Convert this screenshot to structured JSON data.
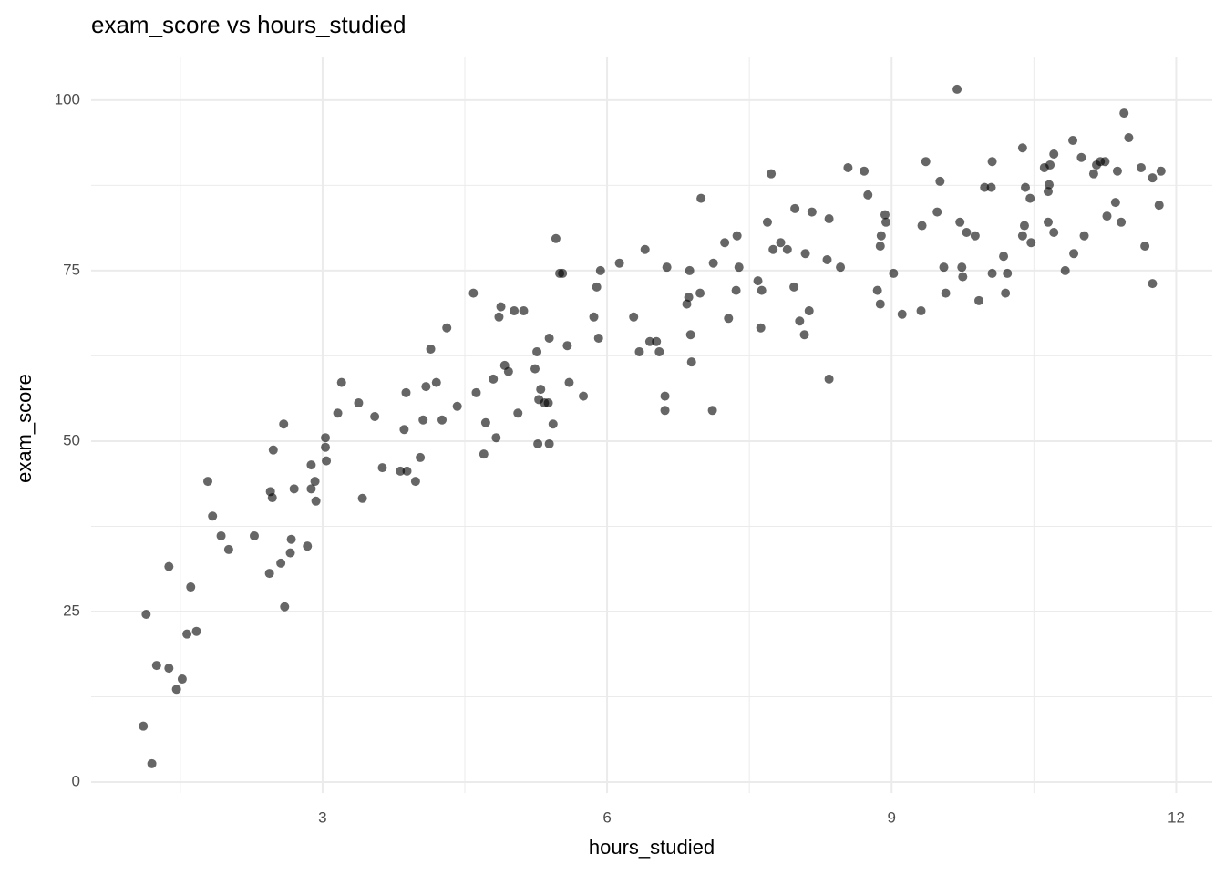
{
  "chart_data": {
    "type": "scatter",
    "title": "exam_score vs hours_studied",
    "x_label": "hours_studied",
    "y_label": "exam_score",
    "xlim": [
      0.56,
      12.38
    ],
    "ylim": [
      -1.6,
      106.4
    ],
    "xticks": [
      3,
      6,
      9,
      12
    ],
    "yticks": [
      0,
      25,
      50,
      75,
      100
    ],
    "x_minor_ticks": [
      1.5,
      4.5,
      7.5,
      10.5
    ],
    "y_minor_ticks": [
      12.5,
      37.5,
      62.5,
      87.5
    ],
    "grid": true,
    "color": "#000000",
    "alpha": 0.6,
    "x": [
      1.11,
      1.2,
      1.14,
      1.25,
      1.38,
      1.38,
      1.46,
      1.52,
      1.57,
      1.61,
      1.67,
      1.79,
      1.84,
      1.93,
      2.01,
      2.28,
      2.44,
      2.45,
      2.47,
      2.48,
      2.56,
      2.59,
      2.6,
      2.67,
      2.66,
      2.7,
      2.84,
      2.88,
      2.88,
      2.92,
      2.93,
      3.03,
      3.03,
      3.04,
      3.16,
      3.2,
      3.38,
      3.42,
      3.55,
      3.63,
      3.82,
      3.86,
      3.88,
      3.89,
      3.98,
      4.03,
      4.06,
      4.09,
      4.14,
      4.2,
      4.26,
      4.31,
      4.42,
      4.59,
      4.62,
      4.7,
      4.72,
      4.8,
      4.83,
      4.86,
      4.88,
      4.92,
      4.96,
      5.02,
      5.06,
      5.12,
      5.24,
      5.26,
      5.27,
      5.28,
      5.3,
      5.34,
      5.38,
      5.39,
      5.39,
      5.43,
      5.46,
      5.5,
      5.53,
      5.58,
      5.6,
      5.75,
      5.86,
      5.89,
      5.91,
      5.93,
      6.13,
      6.28,
      6.34,
      6.4,
      6.45,
      6.52,
      6.55,
      6.61,
      6.61,
      6.63,
      6.84,
      6.86,
      6.87,
      6.88,
      6.89,
      6.98,
      6.99,
      7.11,
      7.12,
      7.24,
      7.28,
      7.36,
      7.37,
      7.39,
      7.59,
      7.62,
      7.63,
      7.69,
      7.73,
      7.75,
      7.83,
      7.9,
      7.97,
      7.98,
      8.03,
      8.08,
      8.09,
      8.13,
      8.16,
      8.32,
      8.34,
      8.34,
      8.46,
      8.54,
      8.71,
      8.75,
      8.85,
      8.88,
      8.88,
      8.89,
      8.93,
      8.94,
      9.02,
      9.11,
      9.31,
      9.32,
      9.36,
      9.48,
      9.51,
      9.55,
      9.57,
      9.69,
      9.72,
      9.74,
      9.75,
      9.79,
      9.88,
      9.92,
      9.98,
      10.05,
      10.06,
      10.06,
      10.18,
      10.2,
      10.22,
      10.38,
      10.38,
      10.4,
      10.41,
      10.46,
      10.47,
      10.61,
      10.65,
      10.65,
      10.66,
      10.67,
      10.71,
      10.71,
      10.83,
      10.91,
      10.92,
      11.0,
      11.03,
      11.13,
      11.16,
      11.2,
      11.25,
      11.27,
      11.36,
      11.38,
      11.42,
      11.45,
      11.5,
      11.63,
      11.67,
      11.75,
      11.75,
      11.82,
      11.84
    ],
    "y": [
      8.2,
      2.7,
      24.6,
      17.1,
      16.7,
      31.6,
      13.6,
      15.1,
      21.7,
      28.6,
      22.1,
      44.1,
      39.0,
      36.1,
      34.1,
      36.1,
      30.6,
      42.6,
      41.7,
      48.7,
      32.1,
      52.5,
      25.7,
      35.6,
      33.6,
      43.0,
      34.6,
      46.5,
      43.0,
      44.1,
      41.2,
      50.5,
      49.1,
      47.1,
      54.1,
      58.6,
      55.6,
      41.6,
      53.6,
      46.1,
      45.6,
      51.7,
      57.1,
      45.6,
      44.1,
      47.6,
      53.1,
      58.0,
      63.5,
      58.6,
      53.1,
      66.6,
      55.1,
      71.7,
      57.1,
      48.1,
      52.7,
      59.1,
      50.5,
      68.2,
      69.7,
      61.1,
      60.2,
      69.1,
      54.1,
      69.1,
      60.6,
      63.1,
      49.6,
      56.1,
      57.6,
      55.6,
      55.6,
      65.1,
      49.6,
      52.5,
      79.7,
      74.6,
      74.6,
      64.0,
      58.6,
      56.6,
      68.2,
      72.6,
      65.1,
      75.0,
      76.1,
      68.2,
      63.1,
      78.1,
      64.6,
      64.6,
      63.1,
      56.6,
      54.5,
      75.5,
      70.1,
      71.1,
      75.0,
      65.6,
      61.6,
      71.7,
      85.6,
      54.5,
      76.1,
      79.1,
      68.0,
      72.1,
      80.1,
      75.5,
      73.5,
      66.6,
      72.1,
      82.1,
      89.2,
      78.1,
      79.1,
      78.1,
      72.6,
      84.1,
      67.6,
      65.6,
      77.5,
      69.1,
      83.6,
      76.6,
      82.6,
      59.1,
      75.5,
      90.1,
      89.6,
      86.1,
      72.1,
      78.6,
      70.1,
      80.1,
      83.2,
      82.1,
      74.6,
      68.6,
      69.1,
      81.6,
      91.0,
      83.6,
      88.1,
      75.5,
      71.7,
      101.6,
      82.1,
      75.5,
      74.1,
      80.6,
      80.1,
      70.6,
      87.2,
      87.2,
      91.0,
      74.6,
      77.1,
      71.7,
      74.6,
      93.0,
      80.1,
      81.6,
      87.2,
      85.6,
      79.1,
      90.1,
      82.1,
      86.6,
      87.6,
      90.5,
      80.6,
      92.1,
      75.0,
      94.1,
      77.5,
      91.6,
      80.1,
      89.2,
      90.5,
      91.0,
      91.0,
      83.0,
      85.0,
      89.6,
      82.1,
      98.1,
      94.5,
      90.1,
      78.6,
      73.1,
      88.6,
      84.6,
      89.6
    ]
  }
}
